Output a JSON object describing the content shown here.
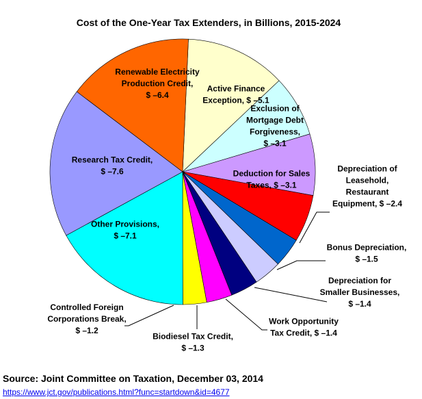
{
  "chart_data": {
    "type": "pie",
    "title": "Cost of the One-Year Tax Extenders, in Billions, 2015-2024",
    "slices": [
      {
        "label": [
          "Active Finance",
          "Exception,  $ –5.1"
        ],
        "value": 5.1,
        "color": "#ffffcc"
      },
      {
        "label": [
          "Exclusion of",
          "Mortgage Debt",
          "Forgiveness,",
          "$ –3.1"
        ],
        "value": 3.1,
        "color": "#ccffff"
      },
      {
        "label": [
          "Deduction for Sales",
          "Taxes,  $ –3.1"
        ],
        "value": 3.1,
        "color": "#cc99ff"
      },
      {
        "label": [
          "Depreciation of",
          "Leasehold,",
          "Restaurant",
          "Equipment,  $ –2.4"
        ],
        "value": 2.4,
        "color": "#ff0000"
      },
      {
        "label": [
          "Bonus Depreciation,",
          "$ –1.5"
        ],
        "value": 1.5,
        "color": "#0066cc"
      },
      {
        "label": [
          "Depreciation for",
          "Smaller Businesses,",
          "$ –1.4"
        ],
        "value": 1.4,
        "color": "#ccccff"
      },
      {
        "label": [
          "Work Opportunity",
          "Tax Credit,  $ –1.4"
        ],
        "value": 1.4,
        "color": "#000080"
      },
      {
        "label": [
          "Biodiesel Tax Credit,",
          "$ –1.3"
        ],
        "value": 1.3,
        "color": "#ff00ff"
      },
      {
        "label": [
          "Controlled Foreign",
          "Corporations Break,",
          "$ –1.2"
        ],
        "value": 1.2,
        "color": "#ffff00"
      },
      {
        "label": [
          "Other Provisions,",
          "$ –7.1"
        ],
        "value": 7.1,
        "color": "#00ffff"
      },
      {
        "label": [
          "Research Tax Credit,",
          "$ –7.6"
        ],
        "value": 7.6,
        "color": "#9999ff"
      },
      {
        "label": [
          "Renewable Electricity",
          "Production Credit,",
          "$ –6.4"
        ],
        "value": 6.4,
        "color": "#ff6600"
      }
    ]
  },
  "footer": {
    "source": "Source: Joint Committee on Taxation, December 03, 2014",
    "link": "https://www.jct.gov/publications.html?func=startdown&id=4677"
  }
}
